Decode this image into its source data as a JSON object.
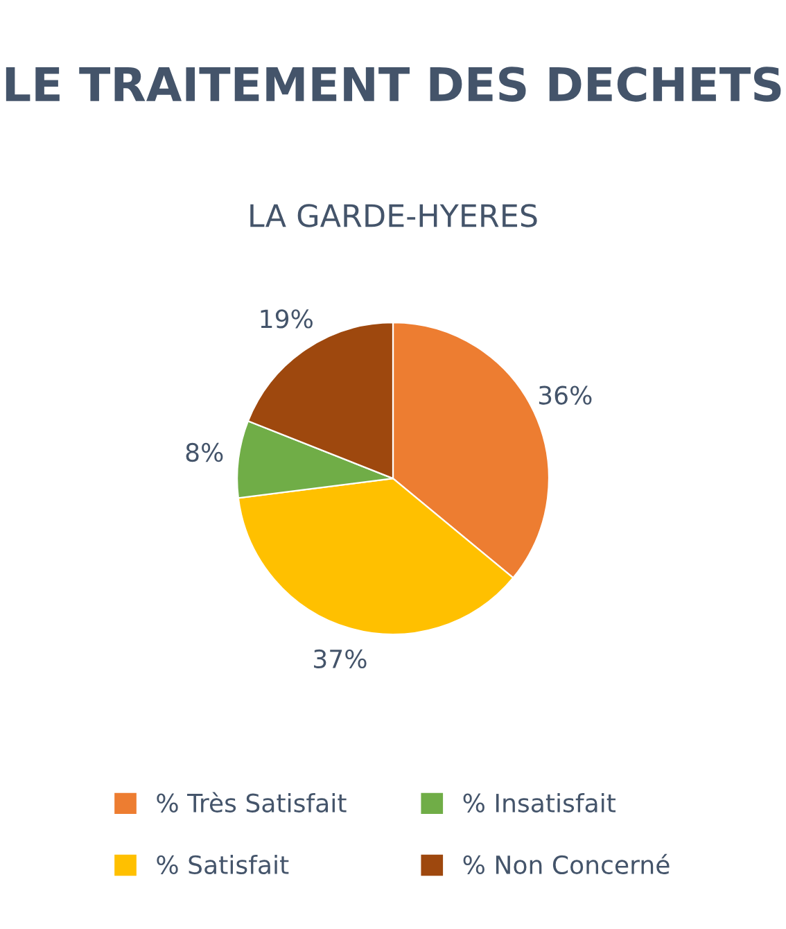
{
  "chart_data": {
    "type": "pie",
    "title": "LE TRAITEMENT DES DECHETS",
    "subtitle": "LA GARDE-HYERES",
    "categories": [
      "% Très Satisfait",
      "% Satisfait",
      "% Insatisfait",
      "% Non Concerné"
    ],
    "values": [
      36,
      37,
      8,
      19
    ],
    "value_labels": [
      "36%",
      "37%",
      "8%",
      "19%"
    ],
    "colors": [
      "#ed7d31",
      "#ffc000",
      "#70ad47",
      "#9e480e"
    ],
    "legend": "bottom"
  }
}
